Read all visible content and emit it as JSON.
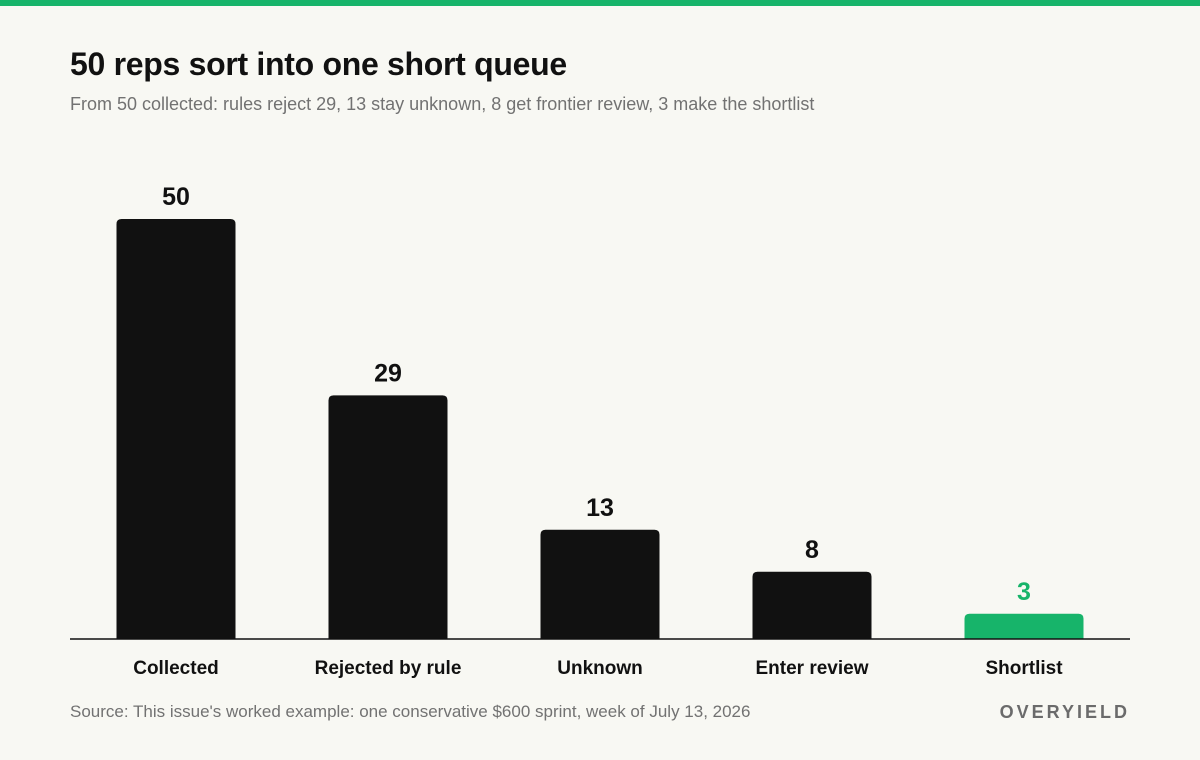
{
  "colors": {
    "accent": "#17b46a",
    "bar": "#111111",
    "text_muted": "#727272",
    "background": "#f8f8f3"
  },
  "header": {
    "title": "50 reps sort into one short queue",
    "subtitle": "From 50 collected: rules reject 29, 13 stay unknown, 8 get frontier review, 3 make the shortlist"
  },
  "chart_data": {
    "type": "bar",
    "categories": [
      "Collected",
      "Rejected by rule",
      "Unknown",
      "Enter review",
      "Shortlist"
    ],
    "values": [
      50,
      29,
      13,
      8,
      3
    ],
    "highlight_index": 4,
    "title": "50 reps sort into one short queue",
    "xlabel": "",
    "ylabel": "",
    "ylim": [
      0,
      50
    ],
    "grid": false,
    "legend": "none"
  },
  "footer": {
    "source": "Source: This issue's worked example: one conservative $600 sprint, week of July 13, 2026",
    "brand": "OVERYIELD"
  }
}
